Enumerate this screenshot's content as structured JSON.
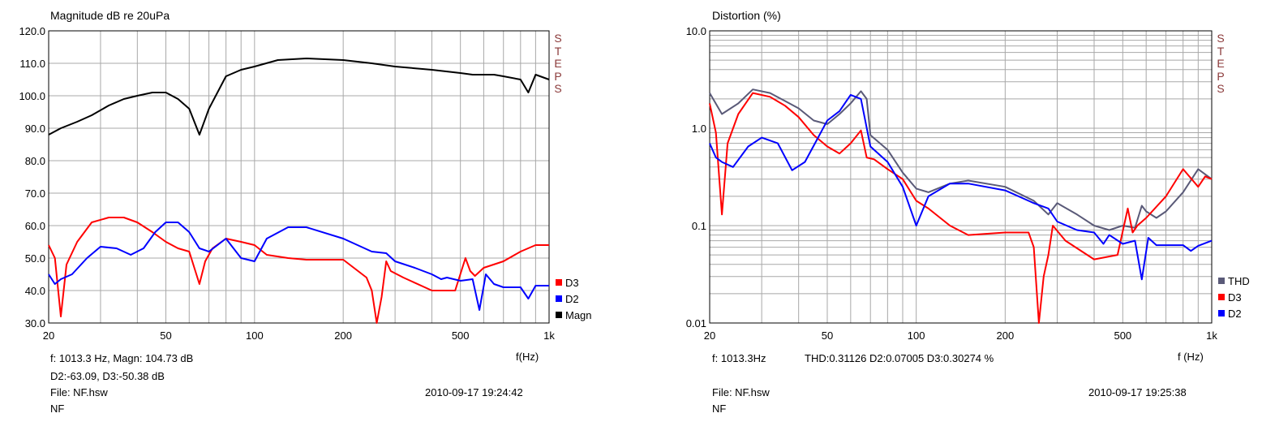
{
  "chart_data": [
    {
      "type": "line",
      "title": "Magnitude dB re 20uPa",
      "xlabel": "f(Hz)",
      "ylabel": "",
      "xscale": "log",
      "xlim": [
        20,
        1000
      ],
      "ylim": [
        30,
        120
      ],
      "x_ticks": [
        "20",
        "50",
        "100",
        "200",
        "500",
        "1k"
      ],
      "y_ticks": [
        "120.0",
        "110.0",
        "100.0",
        "90.0",
        "80.0",
        "70.0",
        "60.0",
        "50.0",
        "40.0",
        "30.0"
      ],
      "grid": true,
      "legend_position": "right-bottom",
      "side_label": "STEPS",
      "series": [
        {
          "name": "D3",
          "color": "#ff0000",
          "x": [
            20,
            21,
            22,
            23,
            25,
            28,
            32,
            36,
            40,
            45,
            50,
            55,
            60,
            65,
            68,
            72,
            80,
            90,
            100,
            110,
            130,
            150,
            200,
            240,
            250,
            260,
            270,
            280,
            290,
            320,
            400,
            480,
            520,
            540,
            560,
            600,
            700,
            800,
            900,
            1000
          ],
          "y": [
            54,
            50,
            32,
            48,
            55,
            61,
            62.5,
            62.5,
            61,
            58,
            55,
            53,
            52,
            42,
            49,
            53,
            56,
            55,
            54,
            51,
            50,
            49.5,
            49.5,
            44,
            40,
            30,
            38,
            49,
            46,
            44,
            40,
            40,
            50,
            46,
            44.5,
            47,
            49,
            52,
            54,
            54
          ]
        },
        {
          "name": "D2",
          "color": "#0000ff",
          "x": [
            20,
            21,
            22,
            24,
            27,
            30,
            34,
            38,
            42,
            46,
            50,
            55,
            60,
            65,
            70,
            80,
            90,
            100,
            110,
            130,
            150,
            200,
            250,
            280,
            300,
            350,
            400,
            430,
            450,
            500,
            550,
            580,
            610,
            650,
            700,
            800,
            850,
            900,
            1000
          ],
          "y": [
            45,
            42,
            43.5,
            45,
            50,
            53.5,
            53,
            51,
            53,
            58,
            61,
            61,
            58,
            53,
            52,
            56,
            50,
            49,
            56,
            59.5,
            59.5,
            56,
            52,
            51.5,
            49,
            47,
            45,
            43.5,
            44,
            43,
            43.5,
            34,
            45,
            42,
            41,
            41,
            37.5,
            41.5,
            41.5
          ]
        },
        {
          "name": "Magn",
          "color": "#000000",
          "x": [
            20,
            22,
            25,
            28,
            32,
            36,
            40,
            45,
            50,
            55,
            60,
            65,
            70,
            80,
            90,
            100,
            120,
            150,
            200,
            250,
            300,
            400,
            500,
            550,
            600,
            650,
            700,
            800,
            850,
            900,
            1000
          ],
          "y": [
            88,
            90,
            92,
            94,
            97,
            99,
            100,
            101,
            101,
            99,
            96,
            88,
            96,
            106,
            108,
            109,
            111,
            111.5,
            111,
            110,
            109,
            108,
            107,
            106.5,
            106.5,
            106.5,
            106,
            105,
            101,
            106.5,
            105
          ]
        }
      ],
      "readout": {
        "line1": "f: 1013.3 Hz, Magn: 104.73 dB",
        "line2": "D2:-63.09, D3:-50.38 dB",
        "file": "File: NF.hsw",
        "name": "NF",
        "timestamp": "2010-09-17 19:24:42"
      }
    },
    {
      "type": "line",
      "title": "Distortion (%)",
      "xlabel": "f (Hz)",
      "ylabel": "",
      "xscale": "log",
      "yscale": "log",
      "xlim": [
        20,
        1000
      ],
      "ylim": [
        0.01,
        10
      ],
      "x_ticks": [
        "20",
        "50",
        "100",
        "200",
        "500",
        "1k"
      ],
      "y_ticks": [
        "10.0",
        "1.0",
        "0.1",
        "0.01"
      ],
      "grid": true,
      "legend_position": "right-bottom",
      "side_label": "STEPS",
      "series": [
        {
          "name": "THD",
          "color": "#5a5a78",
          "x": [
            20,
            22,
            25,
            28,
            32,
            36,
            40,
            45,
            50,
            55,
            60,
            65,
            68,
            70,
            80,
            90,
            100,
            110,
            130,
            150,
            200,
            250,
            280,
            300,
            350,
            400,
            450,
            500,
            550,
            580,
            600,
            650,
            700,
            800,
            900,
            1000
          ],
          "y": [
            2.3,
            1.4,
            1.8,
            2.5,
            2.3,
            1.9,
            1.6,
            1.2,
            1.1,
            1.4,
            1.8,
            2.4,
            2.0,
            0.85,
            0.6,
            0.35,
            0.24,
            0.22,
            0.27,
            0.29,
            0.25,
            0.18,
            0.13,
            0.17,
            0.13,
            0.1,
            0.09,
            0.1,
            0.095,
            0.16,
            0.14,
            0.12,
            0.14,
            0.22,
            0.38,
            0.3
          ]
        },
        {
          "name": "D3",
          "color": "#ff0000",
          "x": [
            20,
            21,
            22,
            23,
            25,
            28,
            32,
            36,
            40,
            45,
            50,
            55,
            60,
            65,
            68,
            72,
            80,
            90,
            100,
            110,
            130,
            150,
            200,
            240,
            250,
            260,
            270,
            280,
            290,
            320,
            400,
            480,
            520,
            540,
            560,
            600,
            700,
            800,
            900,
            950,
            1000
          ],
          "y": [
            1.8,
            0.9,
            0.13,
            0.7,
            1.4,
            2.3,
            2.1,
            1.7,
            1.3,
            0.85,
            0.65,
            0.55,
            0.7,
            0.95,
            0.5,
            0.48,
            0.38,
            0.3,
            0.18,
            0.15,
            0.1,
            0.08,
            0.085,
            0.085,
            0.06,
            0.01,
            0.03,
            0.05,
            0.1,
            0.07,
            0.045,
            0.05,
            0.15,
            0.085,
            0.1,
            0.12,
            0.2,
            0.38,
            0.25,
            0.32,
            0.3
          ]
        },
        {
          "name": "D2",
          "color": "#0000ff",
          "x": [
            20,
            21,
            22,
            24,
            27,
            30,
            34,
            38,
            42,
            46,
            50,
            55,
            60,
            65,
            70,
            80,
            90,
            100,
            110,
            130,
            150,
            200,
            250,
            280,
            300,
            350,
            400,
            430,
            450,
            500,
            550,
            580,
            610,
            650,
            700,
            800,
            850,
            900,
            1000
          ],
          "y": [
            0.7,
            0.5,
            0.45,
            0.4,
            0.65,
            0.8,
            0.7,
            0.37,
            0.45,
            0.75,
            1.2,
            1.5,
            2.2,
            2.0,
            0.65,
            0.45,
            0.25,
            0.1,
            0.2,
            0.27,
            0.27,
            0.23,
            0.17,
            0.15,
            0.11,
            0.09,
            0.085,
            0.065,
            0.08,
            0.065,
            0.07,
            0.028,
            0.075,
            0.063,
            0.063,
            0.063,
            0.055,
            0.062,
            0.07
          ]
        }
      ],
      "readout": {
        "line1": "f: 1013.3Hz",
        "line1b": "THD:0.31126  D2:0.07005  D3:0.30274 %",
        "file": "File: NF.hsw",
        "name": "NF",
        "timestamp": "2010-09-17 19:25:38"
      }
    }
  ]
}
